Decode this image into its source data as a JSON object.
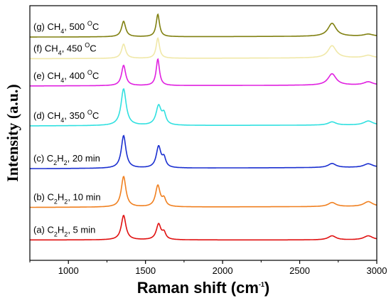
{
  "chart_data": {
    "type": "line",
    "title": "",
    "xlabel": {
      "main": "Raman shift (cm",
      "sup": "-1",
      "close": ")"
    },
    "ylabel": "Intensity (a.u.)",
    "xlim": [
      750,
      3000
    ],
    "x_ticks": [
      1000,
      1500,
      2000,
      2500,
      3000
    ],
    "y_ticks_labeled": false,
    "grid": false,
    "legend": "inline labels left of each trace",
    "series": [
      {
        "label": {
          "a": "(a) C",
          "b": "2",
          "c": "H",
          "d": "2",
          "e": ", 5 min"
        },
        "color": "#e01010",
        "baseline": 0.0,
        "bg_slope": 0.0,
        "peaks": [
          [
            1358,
            0.6,
            18
          ],
          [
            1585,
            0.38,
            18
          ],
          [
            1620,
            0.16,
            14
          ],
          [
            2710,
            0.1,
            30
          ],
          [
            2945,
            0.1,
            35
          ]
        ]
      },
      {
        "label": {
          "a": "(b) C",
          "b": "2",
          "c": "H",
          "d": "2",
          "e": ", 10 min"
        },
        "color": "#f08020",
        "baseline": 0.8,
        "bg_slope": 0.02,
        "peaks": [
          [
            1358,
            0.75,
            18
          ],
          [
            1580,
            0.52,
            18
          ],
          [
            1620,
            0.18,
            14
          ],
          [
            2710,
            0.1,
            30
          ],
          [
            2945,
            0.12,
            35
          ]
        ]
      },
      {
        "label": {
          "a": "(c) C",
          "b": "2",
          "c": "H",
          "d": "2",
          "e": ", 20 min"
        },
        "color": "#1a2fd0",
        "baseline": 1.75,
        "bg_slope": 0.03,
        "peaks": [
          [
            1358,
            0.8,
            18
          ],
          [
            1585,
            0.52,
            18
          ],
          [
            1620,
            0.22,
            14
          ],
          [
            2710,
            0.1,
            30
          ],
          [
            2945,
            0.09,
            35
          ]
        ]
      },
      {
        "label": {
          "a": "(d) CH",
          "b": "4",
          "c": ", 350 ",
          "d": "O",
          "e": "C"
        },
        "color": "#30e0e0",
        "baseline": 2.8,
        "bg_slope": 0.02,
        "peaks": [
          [
            1358,
            0.9,
            20
          ],
          [
            1585,
            0.47,
            20
          ],
          [
            1620,
            0.25,
            15
          ],
          [
            2710,
            0.08,
            30
          ],
          [
            2945,
            0.1,
            35
          ]
        ]
      },
      {
        "label": {
          "a": "(e) CH",
          "b": "4",
          "c": ", 400 ",
          "d": "O",
          "e": "C"
        },
        "color": "#e020e0",
        "baseline": 3.78,
        "bg_slope": 0.02,
        "peaks": [
          [
            1358,
            0.5,
            16
          ],
          [
            1580,
            0.65,
            13
          ],
          [
            2710,
            0.28,
            32
          ],
          [
            2945,
            0.08,
            35
          ]
        ]
      },
      {
        "label": {
          "a": "(f) CH",
          "b": "4",
          "c": ", 450 ",
          "d": "O",
          "e": "C"
        },
        "color": "#f0e8a8",
        "baseline": 4.45,
        "bg_slope": 0.02,
        "peaks": [
          [
            1358,
            0.35,
            16
          ],
          [
            1580,
            0.5,
            13
          ],
          [
            2710,
            0.3,
            32
          ],
          [
            2945,
            0.06,
            35
          ]
        ]
      },
      {
        "label": {
          "a": "(g) CH",
          "b": "4",
          "c": ", 500 ",
          "d": "O",
          "e": "C"
        },
        "color": "#808010",
        "baseline": 4.98,
        "bg_slope": 0.02,
        "peaks": [
          [
            1358,
            0.38,
            16
          ],
          [
            1580,
            0.55,
            13
          ],
          [
            2710,
            0.32,
            32
          ],
          [
            2945,
            0.05,
            35
          ]
        ]
      }
    ]
  }
}
